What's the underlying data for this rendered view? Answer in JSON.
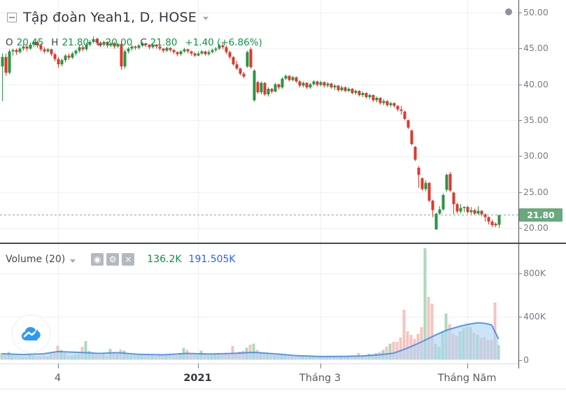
{
  "header": {
    "title": "Tập đoàn Yeah1, D, HOSE",
    "ohlc": {
      "o_label": "O",
      "o_value": "20.45",
      "h_label": "H",
      "h_value": "21.80",
      "l_label": "L",
      "l_value": "20.00",
      "c_label": "C",
      "c_value": "21.80",
      "change_value": "+1.40 (+6.86%)"
    }
  },
  "volume_header": {
    "label": "Volume (20)",
    "eye_icon": "◉",
    "gear_icon": "⚙",
    "close_icon": "×",
    "volume_value": "136.2K",
    "ma_value": "191.505K"
  },
  "colors": {
    "up": "#289640",
    "down": "#e0382e",
    "volume_up": "#aed9b8",
    "volume_down": "#f4c4c0",
    "ma_line": "#3b87f0",
    "ma_fill": "#aed4f2",
    "grid": "#eef0f4",
    "axis_text": "#787b86",
    "axis_border": "#494c55",
    "separator": "#474a54",
    "last_price_bg": "#6aa87e",
    "dashed_price_line": "#7fae8c"
  },
  "chart_data": {
    "type": "candlestick",
    "title": "Tập đoàn Yeah1, D, HOSE",
    "symbol": "Tập đoàn Yeah1",
    "interval": "D",
    "exchange": "HOSE",
    "legend_position": "top-left",
    "grid": true,
    "ohlc_readout": {
      "open": 20.45,
      "high": 21.8,
      "low": 20.0,
      "close": 21.8,
      "change": 1.4,
      "change_pct": 6.86
    },
    "price_axis": {
      "ticks": [
        50,
        45,
        40,
        35,
        30,
        25,
        20
      ],
      "range_visible": [
        18.9,
        51.7
      ],
      "last_price": 21.8,
      "last_price_label": "21.80"
    },
    "volume_axis": {
      "ticks": [
        {
          "v": 800,
          "label": "800K"
        },
        {
          "v": 400,
          "label": "400K"
        },
        {
          "v": 0,
          "label": "0"
        }
      ],
      "unit": "K"
    },
    "volume_readout": {
      "volume": "136.2K",
      "ma20": "191.505K"
    },
    "time_ticks": [
      {
        "bar": 16,
        "label": "4",
        "bold": false
      },
      {
        "bar": 56,
        "label": "2021",
        "bold": true
      },
      {
        "bar": 91,
        "label": "Tháng 3",
        "bold": false
      },
      {
        "bar": 133,
        "label": "Tháng Năm",
        "bold": false
      }
    ],
    "bars_ohlcv": [
      [
        42.5,
        44.3,
        37.7,
        43.8,
        60
      ],
      [
        43.8,
        44.3,
        41.2,
        41.6,
        45
      ],
      [
        41.6,
        44.9,
        41.4,
        44.6,
        70
      ],
      [
        44.6,
        45.0,
        44.0,
        44.8,
        40
      ],
      [
        44.8,
        45.0,
        44.1,
        44.5,
        35
      ],
      [
        44.5,
        45.2,
        44.3,
        45.0,
        30
      ],
      [
        45.0,
        45.6,
        44.7,
        45.3,
        25
      ],
      [
        45.3,
        45.5,
        44.6,
        45.0,
        30
      ],
      [
        45.0,
        45.8,
        44.8,
        45.5,
        45
      ],
      [
        45.5,
        46.2,
        45.2,
        45.9,
        35
      ],
      [
        45.9,
        46.1,
        45.1,
        45.4,
        28
      ],
      [
        45.4,
        45.7,
        44.6,
        44.9,
        32
      ],
      [
        44.9,
        45.2,
        44.3,
        44.6,
        40
      ],
      [
        44.6,
        45.1,
        44.4,
        44.9,
        30
      ],
      [
        44.9,
        45.0,
        43.9,
        44.2,
        55
      ],
      [
        44.2,
        44.4,
        43.2,
        43.5,
        55
      ],
      [
        43.5,
        43.8,
        42.3,
        42.8,
        130
      ],
      [
        42.8,
        43.6,
        42.5,
        43.4,
        90
      ],
      [
        43.4,
        44.2,
        43.1,
        44.0,
        60
      ],
      [
        44.0,
        44.3,
        43.4,
        43.7,
        40
      ],
      [
        43.7,
        44.5,
        43.5,
        44.3,
        35
      ],
      [
        44.3,
        44.9,
        44.0,
        44.7,
        45
      ],
      [
        44.7,
        45.4,
        44.4,
        45.2,
        50
      ],
      [
        45.2,
        45.5,
        44.6,
        44.9,
        120
      ],
      [
        44.9,
        45.8,
        44.7,
        45.5,
        170
      ],
      [
        45.5,
        46.2,
        45.3,
        45.9,
        80
      ],
      [
        45.9,
        46.7,
        45.7,
        46.3,
        60
      ],
      [
        46.3,
        46.5,
        45.5,
        45.8,
        50
      ],
      [
        45.8,
        46.0,
        45.2,
        45.5,
        45
      ],
      [
        45.5,
        46.1,
        45.3,
        45.9,
        55
      ],
      [
        45.9,
        46.0,
        45.1,
        45.4,
        40
      ],
      [
        45.4,
        45.9,
        45.2,
        45.7,
        100
      ],
      [
        45.7,
        45.9,
        45.0,
        45.3,
        70
      ],
      [
        45.3,
        45.8,
        45.1,
        45.6,
        55
      ],
      [
        45.6,
        46.0,
        42.0,
        42.5,
        95
      ],
      [
        42.5,
        44.9,
        42.2,
        44.6,
        85
      ],
      [
        44.6,
        45.2,
        44.3,
        45.0,
        50
      ],
      [
        45.0,
        45.5,
        44.7,
        45.3,
        45
      ],
      [
        45.3,
        45.4,
        44.8,
        45.1,
        40
      ],
      [
        45.1,
        45.6,
        44.9,
        45.4,
        38
      ],
      [
        45.4,
        45.9,
        45.2,
        45.7,
        42
      ],
      [
        45.7,
        45.8,
        45.2,
        45.5,
        36
      ],
      [
        45.5,
        45.6,
        44.9,
        45.2,
        45
      ],
      [
        45.2,
        45.7,
        45.0,
        45.5,
        40
      ],
      [
        45.5,
        45.6,
        45.0,
        45.3,
        35
      ],
      [
        45.3,
        45.4,
        44.7,
        45.0,
        48
      ],
      [
        45.0,
        45.1,
        44.4,
        44.7,
        42
      ],
      [
        44.7,
        45.3,
        44.5,
        45.1,
        38
      ],
      [
        45.1,
        45.2,
        44.5,
        44.8,
        44
      ],
      [
        44.8,
        44.9,
        44.2,
        44.5,
        40
      ],
      [
        44.5,
        44.6,
        43.9,
        44.2,
        36
      ],
      [
        44.2,
        44.8,
        44.0,
        44.6,
        60
      ],
      [
        44.6,
        45.1,
        44.4,
        44.9,
        110
      ],
      [
        44.9,
        45.0,
        44.3,
        44.6,
        90
      ],
      [
        44.6,
        44.7,
        44.0,
        44.3,
        55
      ],
      [
        44.3,
        44.5,
        43.8,
        44.0,
        50
      ],
      [
        44.0,
        44.6,
        43.9,
        44.3,
        45
      ],
      [
        44.3,
        44.8,
        44.1,
        44.6,
        85
      ],
      [
        44.6,
        44.7,
        44.0,
        44.2,
        60
      ],
      [
        44.2,
        44.8,
        44.0,
        44.5,
        40
      ],
      [
        44.5,
        45.0,
        44.3,
        44.8,
        45
      ],
      [
        44.8,
        45.2,
        44.5,
        45.0,
        50
      ],
      [
        45.0,
        45.6,
        44.8,
        45.4,
        55
      ],
      [
        45.4,
        45.7,
        44.9,
        45.2,
        48
      ],
      [
        45.2,
        45.4,
        44.2,
        44.5,
        60
      ],
      [
        44.5,
        44.7,
        43.5,
        43.8,
        52
      ],
      [
        43.8,
        43.9,
        42.6,
        42.8,
        125
      ],
      [
        42.8,
        43.3,
        42.0,
        42.2,
        65
      ],
      [
        42.2,
        42.3,
        41.3,
        41.5,
        75
      ],
      [
        41.5,
        41.7,
        40.9,
        41.1,
        80
      ],
      [
        42.5,
        44.7,
        42.3,
        44.5,
        110
      ],
      [
        44.9,
        45.2,
        42.2,
        42.4,
        140
      ],
      [
        37.8,
        42.1,
        37.6,
        41.9,
        150
      ],
      [
        40.3,
        40.5,
        38.7,
        38.9,
        90
      ],
      [
        38.9,
        40.4,
        38.6,
        40.2,
        70
      ],
      [
        40.2,
        40.3,
        38.4,
        38.6,
        60
      ],
      [
        38.6,
        39.6,
        38.3,
        39.4,
        55
      ],
      [
        39.4,
        39.5,
        38.7,
        39.0,
        50
      ],
      [
        39.0,
        40.2,
        38.9,
        40.0,
        45
      ],
      [
        40.0,
        40.1,
        39.3,
        39.6,
        55
      ],
      [
        39.6,
        41.0,
        39.4,
        40.8,
        48
      ],
      [
        40.8,
        41.4,
        40.6,
        41.2,
        42
      ],
      [
        41.2,
        41.3,
        40.4,
        40.6,
        35
      ],
      [
        40.6,
        41.2,
        40.4,
        41.0,
        30
      ],
      [
        41.0,
        41.1,
        40.2,
        40.4,
        28
      ],
      [
        40.4,
        40.6,
        39.6,
        39.8,
        32
      ],
      [
        39.8,
        40.4,
        39.6,
        40.2,
        30
      ],
      [
        40.2,
        40.3,
        39.4,
        39.6,
        26
      ],
      [
        39.6,
        40.2,
        39.4,
        40.0,
        28
      ],
      [
        40.0,
        40.6,
        39.8,
        40.4,
        25
      ],
      [
        40.4,
        40.5,
        39.7,
        39.9,
        30
      ],
      [
        39.9,
        40.5,
        39.7,
        40.3,
        28
      ],
      [
        40.3,
        40.4,
        39.6,
        39.8,
        26
      ],
      [
        39.8,
        40.3,
        39.6,
        40.1,
        30
      ],
      [
        40.1,
        40.2,
        39.4,
        39.6,
        28
      ],
      [
        39.6,
        40.0,
        39.2,
        39.8,
        26
      ],
      [
        39.8,
        39.9,
        39.0,
        39.2,
        28
      ],
      [
        39.2,
        39.8,
        39.0,
        39.6,
        32
      ],
      [
        39.6,
        39.7,
        38.9,
        39.1,
        30
      ],
      [
        39.1,
        39.6,
        38.9,
        39.4,
        35
      ],
      [
        39.4,
        39.5,
        38.6,
        38.8,
        28
      ],
      [
        38.8,
        39.3,
        38.5,
        39.1,
        30
      ],
      [
        39.1,
        39.2,
        38.3,
        38.5,
        60
      ],
      [
        38.5,
        39.0,
        38.2,
        38.8,
        40
      ],
      [
        38.8,
        38.9,
        38.0,
        38.2,
        38
      ],
      [
        38.2,
        38.7,
        37.9,
        38.5,
        55
      ],
      [
        38.5,
        38.6,
        37.6,
        37.8,
        50
      ],
      [
        37.8,
        38.3,
        37.5,
        38.1,
        60
      ],
      [
        38.1,
        38.2,
        37.2,
        37.4,
        70
      ],
      [
        37.4,
        37.9,
        37.1,
        37.7,
        90
      ],
      [
        37.7,
        37.8,
        36.9,
        37.1,
        120
      ],
      [
        37.1,
        37.6,
        36.8,
        37.4,
        150
      ],
      [
        37.4,
        37.5,
        36.8,
        37.0,
        165
      ],
      [
        37.0,
        37.1,
        36.2,
        36.5,
        165
      ],
      [
        36.5,
        37.0,
        35.8,
        36.3,
        205
      ],
      [
        36.2,
        36.3,
        35.0,
        35.2,
        460
      ],
      [
        35.0,
        35.1,
        33.8,
        34.0,
        260
      ],
      [
        33.6,
        33.7,
        31.5,
        31.7,
        230
      ],
      [
        31.3,
        31.4,
        29.3,
        29.5,
        195
      ],
      [
        28.4,
        28.6,
        25.6,
        27.4,
        240
      ],
      [
        26.9,
        27.0,
        25.2,
        25.4,
        300
      ],
      [
        25.4,
        26.6,
        25.1,
        26.3,
        1030
      ],
      [
        26.3,
        26.4,
        23.6,
        23.8,
        580
      ],
      [
        23.8,
        23.9,
        21.5,
        22.5,
        515
      ],
      [
        19.8,
        22.1,
        19.7,
        22.0,
        150
      ],
      [
        22.0,
        23.0,
        21.8,
        22.6,
        120
      ],
      [
        22.6,
        24.8,
        22.4,
        24.6,
        260
      ],
      [
        25.3,
        27.6,
        25.0,
        27.4,
        425
      ],
      [
        27.5,
        27.8,
        25.0,
        25.2,
        330
      ],
      [
        24.9,
        25.0,
        21.9,
        23.3,
        240
      ],
      [
        23.3,
        23.5,
        22.0,
        22.3,
        220
      ],
      [
        22.3,
        23.3,
        22.0,
        22.8,
        260
      ],
      [
        22.8,
        23.0,
        22.2,
        22.9,
        290
      ],
      [
        22.9,
        23.1,
        22.0,
        22.2,
        310
      ],
      [
        22.2,
        22.9,
        21.9,
        22.5,
        300
      ],
      [
        22.5,
        22.7,
        21.8,
        22.0,
        250
      ],
      [
        22.0,
        23.0,
        21.8,
        22.4,
        230
      ],
      [
        22.4,
        22.5,
        21.6,
        21.9,
        200
      ],
      [
        21.9,
        22.0,
        20.9,
        21.5,
        210
      ],
      [
        21.5,
        21.6,
        20.5,
        20.9,
        180
      ],
      [
        20.9,
        21.1,
        20.1,
        20.4,
        180
      ],
      [
        20.6,
        20.8,
        20.1,
        20.4,
        530
      ],
      [
        20.45,
        21.8,
        20.0,
        21.8,
        136.2
      ]
    ],
    "volume_ma20_k": [
      [
        0,
        55
      ],
      [
        6,
        48
      ],
      [
        12,
        55
      ],
      [
        16,
        75
      ],
      [
        22,
        68
      ],
      [
        28,
        58
      ],
      [
        33,
        65
      ],
      [
        39,
        50
      ],
      [
        46,
        45
      ],
      [
        53,
        58
      ],
      [
        59,
        52
      ],
      [
        66,
        58
      ],
      [
        72,
        68
      ],
      [
        78,
        55
      ],
      [
        84,
        38
      ],
      [
        91,
        30
      ],
      [
        98,
        31
      ],
      [
        103,
        35
      ],
      [
        108,
        45
      ],
      [
        112,
        60
      ],
      [
        115,
        95
      ],
      [
        118,
        135
      ],
      [
        121,
        180
      ],
      [
        124,
        228
      ],
      [
        127,
        270
      ],
      [
        130,
        300
      ],
      [
        133,
        325
      ],
      [
        136,
        340
      ],
      [
        138,
        336
      ],
      [
        140,
        322
      ],
      [
        141,
        258
      ],
      [
        142,
        192
      ]
    ]
  }
}
